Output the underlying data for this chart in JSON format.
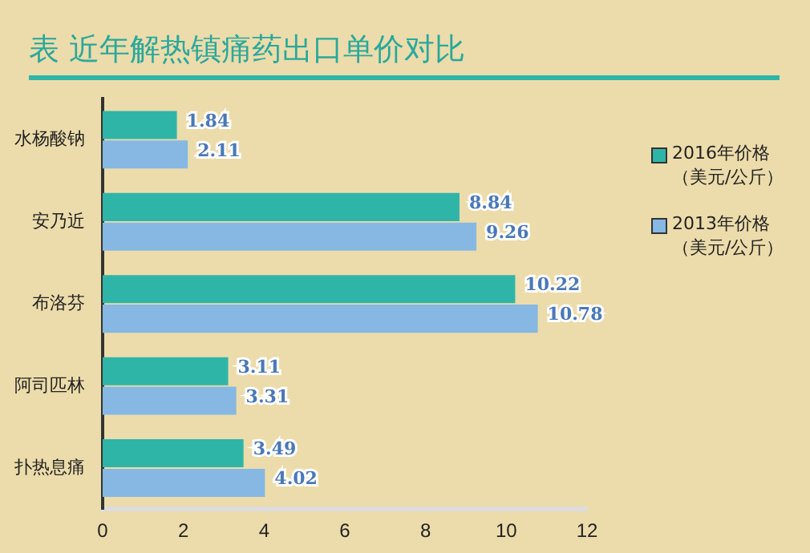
{
  "chart_data": {
    "type": "bar",
    "orientation": "horizontal",
    "title": "表  近年解热镇痛药出口单价对比",
    "categories": [
      "水杨酸钠",
      "安乃近",
      "布洛芬",
      "阿司匹林",
      "扑热息痛"
    ],
    "series": [
      {
        "name": "2016年价格（美元/公斤）",
        "color": "#2fb5a8",
        "values": [
          1.84,
          8.84,
          10.22,
          3.11,
          3.49
        ]
      },
      {
        "name": "2013年价格（美元/公斤）",
        "color": "#86b8e3",
        "values": [
          2.11,
          9.26,
          10.78,
          3.31,
          4.02
        ]
      }
    ],
    "xlim": [
      0,
      12
    ],
    "xticks": [
      0,
      2,
      4,
      6,
      8,
      10,
      12
    ],
    "grid": false,
    "legend": "right",
    "data_labels": true
  }
}
